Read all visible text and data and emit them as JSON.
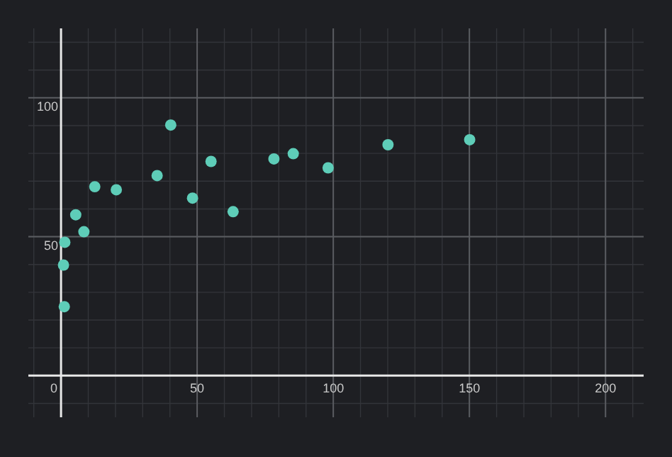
{
  "chart_data": {
    "type": "scatter",
    "x": [
      1.4,
      0.9,
      1.2,
      5.4,
      8.4,
      12.4,
      20.3,
      35.3,
      40.3,
      48.3,
      55.1,
      63.2,
      78.2,
      85.3,
      98.1,
      120.1,
      150.1
    ],
    "values": [
      48,
      39.8,
      24.8,
      57.9,
      51.8,
      68,
      66.9,
      72,
      90.2,
      63.9,
      77.1,
      59,
      78,
      79.9,
      74.8,
      83.1,
      84.9
    ],
    "color": "#5ecdb8",
    "marker": "circle",
    "xlim": [
      -12,
      214
    ],
    "ylim": [
      -15,
      125
    ],
    "xticks": [
      0,
      50,
      100,
      150,
      200
    ],
    "yticks": [
      50,
      100
    ],
    "grid": true
  }
}
